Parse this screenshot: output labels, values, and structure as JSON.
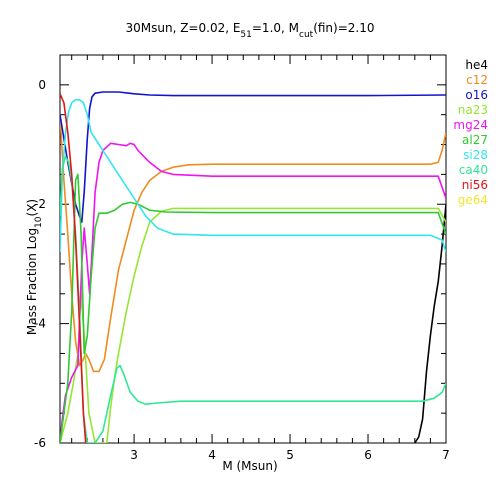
{
  "chart_data": {
    "type": "line",
    "title_parts": [
      "30Msun, Z=0.02, E",
      "51",
      "=1.0, M",
      "cut",
      "(fin)=2.10"
    ],
    "xlabel": "M (Msun)",
    "ylabel_parts": [
      "Mass Fraction Log",
      "10",
      "(X)"
    ],
    "xlim": [
      2.05,
      7.0
    ],
    "ylim": [
      -6,
      0.5
    ],
    "xticks": [
      3,
      4,
      5,
      6,
      7
    ],
    "yticks": [
      0,
      -2,
      -4,
      -6
    ],
    "grid": false,
    "legend_position": "right",
    "series": [
      {
        "name": "he4",
        "color": "#000000",
        "points": [
          [
            6.6,
            -6.0
          ],
          [
            6.65,
            -5.9
          ],
          [
            6.7,
            -5.6
          ],
          [
            6.75,
            -4.8
          ],
          [
            6.8,
            -4.2
          ],
          [
            6.85,
            -3.7
          ],
          [
            6.9,
            -3.3
          ],
          [
            6.95,
            -2.7
          ],
          [
            7.0,
            -2.0
          ]
        ]
      },
      {
        "name": "c12",
        "color": "#f08c1e",
        "points": [
          [
            2.05,
            -0.5
          ],
          [
            2.1,
            -1.6
          ],
          [
            2.15,
            -2.5
          ],
          [
            2.2,
            -3.5
          ],
          [
            2.25,
            -4.3
          ],
          [
            2.3,
            -4.7
          ],
          [
            2.35,
            -4.6
          ],
          [
            2.38,
            -4.5
          ],
          [
            2.42,
            -4.6
          ],
          [
            2.48,
            -4.8
          ],
          [
            2.55,
            -4.8
          ],
          [
            2.62,
            -4.6
          ],
          [
            2.7,
            -3.9
          ],
          [
            2.8,
            -3.1
          ],
          [
            2.9,
            -2.6
          ],
          [
            3.0,
            -2.1
          ],
          [
            3.1,
            -1.8
          ],
          [
            3.2,
            -1.6
          ],
          [
            3.35,
            -1.45
          ],
          [
            3.5,
            -1.38
          ],
          [
            3.7,
            -1.34
          ],
          [
            4.0,
            -1.33
          ],
          [
            5.0,
            -1.33
          ],
          [
            6.0,
            -1.33
          ],
          [
            6.8,
            -1.33
          ],
          [
            6.9,
            -1.3
          ],
          [
            6.95,
            -1.1
          ],
          [
            7.0,
            -0.8
          ]
        ]
      },
      {
        "name": "o16",
        "color": "#1414c8",
        "points": [
          [
            2.05,
            -0.5
          ],
          [
            2.15,
            -1.3
          ],
          [
            2.25,
            -2.0
          ],
          [
            2.3,
            -2.2
          ],
          [
            2.33,
            -2.3
          ],
          [
            2.36,
            -1.8
          ],
          [
            2.4,
            -0.9
          ],
          [
            2.43,
            -0.4
          ],
          [
            2.46,
            -0.2
          ],
          [
            2.5,
            -0.14
          ],
          [
            2.6,
            -0.12
          ],
          [
            2.8,
            -0.12
          ],
          [
            3.0,
            -0.15
          ],
          [
            3.2,
            -0.17
          ],
          [
            3.5,
            -0.18
          ],
          [
            4.0,
            -0.18
          ],
          [
            5.0,
            -0.18
          ],
          [
            6.0,
            -0.18
          ],
          [
            7.0,
            -0.17
          ]
        ]
      },
      {
        "name": "na23",
        "color": "#96e632",
        "points": [
          [
            2.05,
            -6.0
          ],
          [
            2.15,
            -5.5
          ],
          [
            2.22,
            -5.0
          ],
          [
            2.28,
            -4.5
          ],
          [
            2.32,
            -3.5
          ],
          [
            2.36,
            -4.2
          ],
          [
            2.42,
            -5.5
          ],
          [
            2.5,
            -6.0
          ],
          [
            2.65,
            -6.0
          ],
          [
            2.7,
            -5.4
          ],
          [
            2.75,
            -4.9
          ],
          [
            2.8,
            -4.5
          ],
          [
            2.9,
            -3.8
          ],
          [
            3.0,
            -3.2
          ],
          [
            3.1,
            -2.7
          ],
          [
            3.2,
            -2.3
          ],
          [
            3.35,
            -2.12
          ],
          [
            3.5,
            -2.07
          ],
          [
            4.0,
            -2.07
          ],
          [
            5.0,
            -2.07
          ],
          [
            6.0,
            -2.07
          ],
          [
            6.9,
            -2.07
          ],
          [
            7.0,
            -2.3
          ]
        ]
      },
      {
        "name": "mg24",
        "color": "#f014f0",
        "points": [
          [
            2.05,
            -6.0
          ],
          [
            2.08,
            -5.6
          ],
          [
            2.12,
            -5.2
          ],
          [
            2.2,
            -4.9
          ],
          [
            2.28,
            -4.7
          ],
          [
            2.33,
            -3.0
          ],
          [
            2.36,
            -2.4
          ],
          [
            2.4,
            -3.0
          ],
          [
            2.43,
            -3.5
          ],
          [
            2.46,
            -2.8
          ],
          [
            2.5,
            -1.8
          ],
          [
            2.55,
            -1.3
          ],
          [
            2.6,
            -1.1
          ],
          [
            2.7,
            -0.98
          ],
          [
            2.8,
            -1.0
          ],
          [
            2.9,
            -1.02
          ],
          [
            2.95,
            -0.98
          ],
          [
            3.0,
            -1.0
          ],
          [
            3.05,
            -1.1
          ],
          [
            3.2,
            -1.3
          ],
          [
            3.35,
            -1.45
          ],
          [
            3.5,
            -1.5
          ],
          [
            4.0,
            -1.53
          ],
          [
            5.0,
            -1.53
          ],
          [
            6.0,
            -1.53
          ],
          [
            6.9,
            -1.53
          ],
          [
            7.0,
            -1.9
          ]
        ]
      },
      {
        "name": "al27",
        "color": "#32c832",
        "points": [
          [
            2.05,
            -6.0
          ],
          [
            2.1,
            -5.5
          ],
          [
            2.15,
            -5.0
          ],
          [
            2.2,
            -3.8
          ],
          [
            2.25,
            -1.6
          ],
          [
            2.28,
            -1.5
          ],
          [
            2.32,
            -2.5
          ],
          [
            2.36,
            -4.5
          ],
          [
            2.4,
            -4.2
          ],
          [
            2.45,
            -3.2
          ],
          [
            2.5,
            -2.4
          ],
          [
            2.55,
            -2.15
          ],
          [
            2.65,
            -2.15
          ],
          [
            2.75,
            -2.1
          ],
          [
            2.85,
            -2.0
          ],
          [
            2.95,
            -1.97
          ],
          [
            3.05,
            -2.0
          ],
          [
            3.2,
            -2.1
          ],
          [
            3.4,
            -2.13
          ],
          [
            4.0,
            -2.14
          ],
          [
            5.0,
            -2.14
          ],
          [
            6.0,
            -2.14
          ],
          [
            6.9,
            -2.14
          ],
          [
            7.0,
            -2.5
          ]
        ]
      },
      {
        "name": "si28",
        "color": "#32e6f0",
        "points": [
          [
            2.05,
            -2.8
          ],
          [
            2.08,
            -1.5
          ],
          [
            2.12,
            -0.8
          ],
          [
            2.16,
            -0.45
          ],
          [
            2.2,
            -0.3
          ],
          [
            2.25,
            -0.25
          ],
          [
            2.3,
            -0.25
          ],
          [
            2.35,
            -0.3
          ],
          [
            2.4,
            -0.5
          ],
          [
            2.45,
            -0.8
          ],
          [
            2.55,
            -1.0
          ],
          [
            2.65,
            -1.2
          ],
          [
            2.75,
            -1.4
          ],
          [
            2.85,
            -1.6
          ],
          [
            3.0,
            -1.9
          ],
          [
            3.15,
            -2.2
          ],
          [
            3.3,
            -2.4
          ],
          [
            3.5,
            -2.5
          ],
          [
            4.0,
            -2.52
          ],
          [
            5.0,
            -2.52
          ],
          [
            6.0,
            -2.52
          ],
          [
            6.8,
            -2.52
          ],
          [
            6.95,
            -2.6
          ],
          [
            7.0,
            -2.8
          ]
        ]
      },
      {
        "name": "ca40",
        "color": "#32e696",
        "points": [
          [
            2.05,
            -2.2
          ],
          [
            2.08,
            -1.4
          ],
          [
            2.12,
            -1.2
          ],
          [
            2.16,
            -1.3
          ],
          [
            2.2,
            -1.6
          ],
          [
            2.25,
            -2.5
          ],
          [
            2.3,
            -3.8
          ],
          [
            2.35,
            -5.5
          ],
          [
            2.4,
            -6.0
          ],
          [
            2.5,
            -6.0
          ],
          [
            2.6,
            -5.8
          ],
          [
            2.7,
            -5.2
          ],
          [
            2.78,
            -4.75
          ],
          [
            2.82,
            -4.7
          ],
          [
            2.87,
            -4.85
          ],
          [
            2.95,
            -5.15
          ],
          [
            3.05,
            -5.3
          ],
          [
            3.15,
            -5.35
          ],
          [
            3.3,
            -5.33
          ],
          [
            3.6,
            -5.3
          ],
          [
            4.0,
            -5.3
          ],
          [
            5.0,
            -5.3
          ],
          [
            6.0,
            -5.3
          ],
          [
            6.7,
            -5.3
          ],
          [
            6.85,
            -5.25
          ],
          [
            6.95,
            -5.15
          ],
          [
            7.0,
            -5.0
          ]
        ]
      },
      {
        "name": "ni56",
        "color": "#e61414",
        "points": [
          [
            2.05,
            -0.15
          ],
          [
            2.1,
            -0.3
          ],
          [
            2.15,
            -0.8
          ],
          [
            2.2,
            -1.5
          ],
          [
            2.25,
            -2.6
          ],
          [
            2.3,
            -4.0
          ],
          [
            2.35,
            -5.5
          ],
          [
            2.38,
            -6.0
          ]
        ]
      },
      {
        "name": "ge64",
        "color": "#f0e632",
        "points": []
      }
    ]
  }
}
